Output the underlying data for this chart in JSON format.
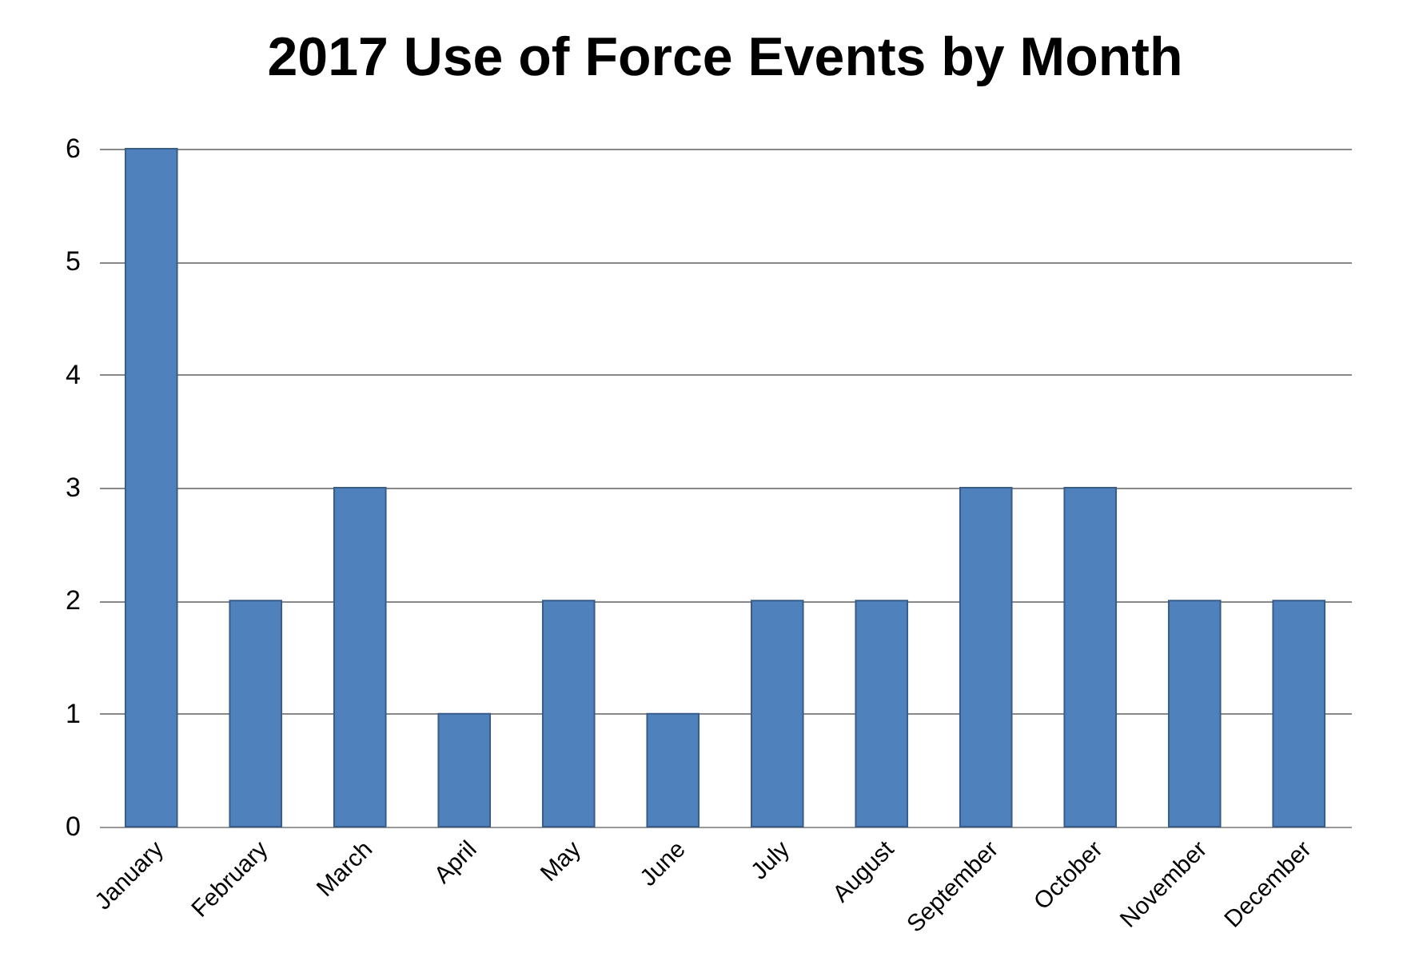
{
  "chart_data": {
    "type": "bar",
    "title": "2017 Use of Force Events by Month",
    "categories": [
      "January",
      "February",
      "March",
      "April",
      "May",
      "June",
      "July",
      "August",
      "September",
      "October",
      "November",
      "December"
    ],
    "values": [
      6,
      2,
      3,
      1,
      2,
      1,
      2,
      2,
      3,
      3,
      2,
      2
    ],
    "color": "#4f81bd",
    "ylim": [
      0,
      6
    ],
    "yticks": [
      0,
      1,
      2,
      3,
      4,
      5,
      6
    ],
    "grid": "y"
  }
}
